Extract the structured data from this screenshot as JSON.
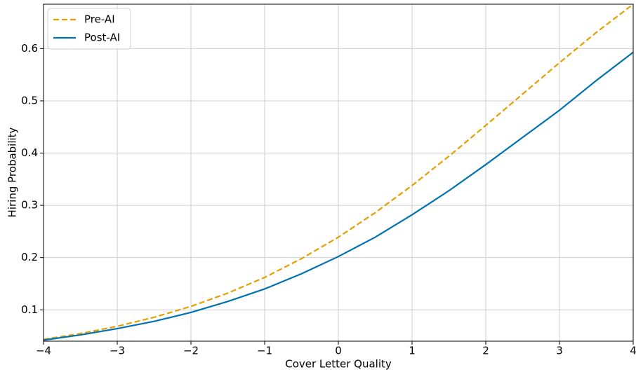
{
  "chart_data": {
    "type": "line",
    "xlabel": "Cover Letter Quality",
    "ylabel": "Hiring Probability",
    "x": [
      -4,
      -3.5,
      -3,
      -2.5,
      -2,
      -1.5,
      -1,
      -0.5,
      0,
      0.5,
      1,
      1.5,
      2,
      2.5,
      3,
      3.5,
      4
    ],
    "series": [
      {
        "name": "Pre-AI",
        "color": "#e69f00",
        "dash": true,
        "values": [
          0.0434,
          0.0546,
          0.0685,
          0.0857,
          0.1066,
          0.132,
          0.162,
          0.198,
          0.239,
          0.286,
          0.338,
          0.394,
          0.453,
          0.513,
          0.573,
          0.631,
          0.685
        ]
      },
      {
        "name": "Post-AI",
        "color": "#0072b2",
        "dash": false,
        "values": [
          0.042,
          0.052,
          0.064,
          0.078,
          0.095,
          0.116,
          0.14,
          0.169,
          0.202,
          0.239,
          0.282,
          0.328,
          0.378,
          0.43,
          0.482,
          0.539,
          0.593
        ]
      }
    ],
    "xlim": [
      -4,
      4
    ],
    "xticks": [
      {
        "value": -4,
        "label": "−4"
      },
      {
        "value": -3,
        "label": "−3"
      },
      {
        "value": -2,
        "label": "−2"
      },
      {
        "value": -1,
        "label": "−1"
      },
      0,
      1,
      2,
      3,
      4
    ],
    "ylim": [
      0.04,
      0.685
    ],
    "yticks": [
      0.1,
      0.2,
      0.3,
      0.4,
      0.5,
      0.6
    ],
    "grid": true,
    "legend": "upper left"
  }
}
